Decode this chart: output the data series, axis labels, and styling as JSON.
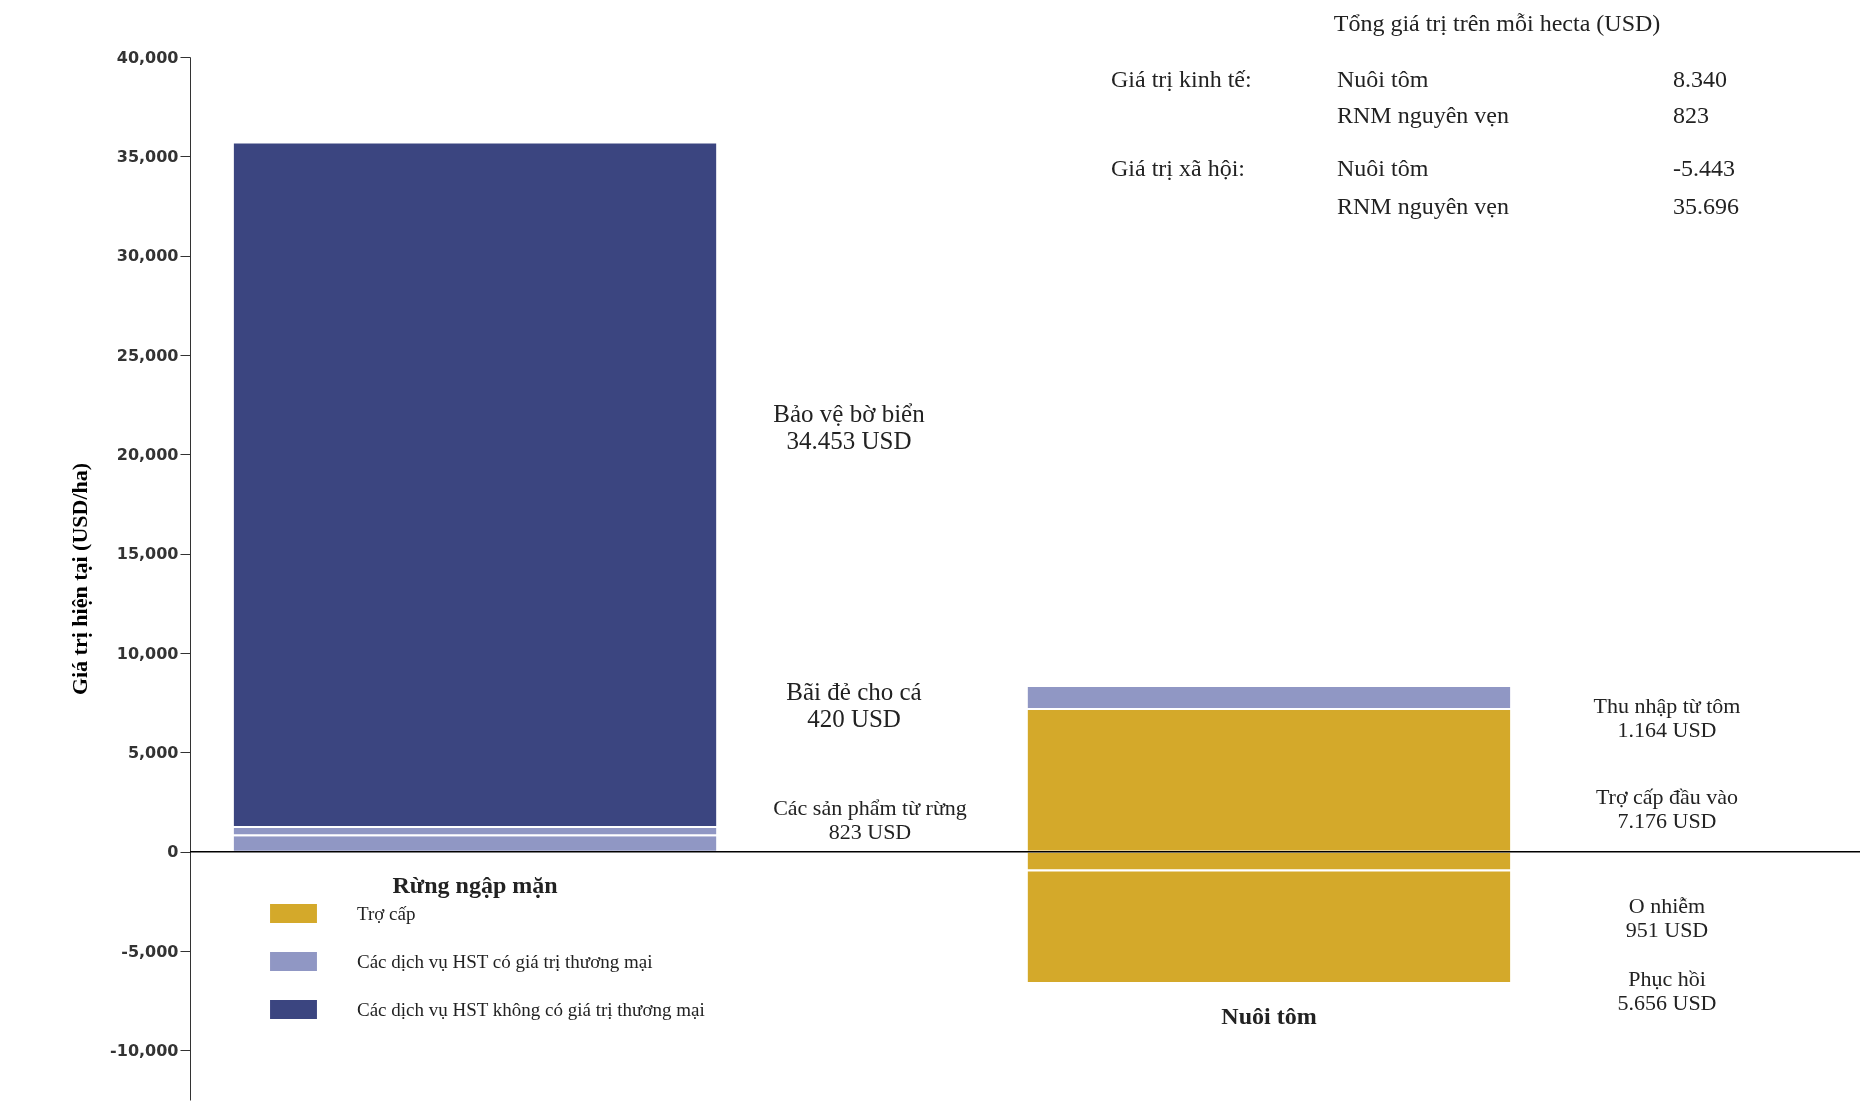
{
  "chart_data": {
    "type": "bar",
    "stacked": true,
    "categories": [
      "Rừng ngập mặn",
      "Nuôi tôm"
    ],
    "series": [
      {
        "name": "Trợ cấp",
        "color": "#d4a92a",
        "values": [
          null,
          7176
        ]
      },
      {
        "name": "Các dịch vụ HST có giá trị thương mại",
        "color": "#9097c4",
        "values": [
          823,
          1164
        ]
      },
      {
        "color": "#9097c4",
        "values": [
          420,
          null
        ]
      },
      {
        "name": "Các dịch vụ HST không có giá trị thương mại",
        "color": "#3b4580",
        "values": [
          34453,
          null
        ]
      },
      {
        "color": "#d4a92a",
        "values": [
          null,
          -951
        ]
      },
      {
        "color": "#d4a92a",
        "values": [
          null,
          -5656
        ]
      }
    ],
    "ylim": [
      -12500,
      40000
    ],
    "yticks": [
      {
        "value": -10000,
        "label": "-10,000"
      },
      {
        "value": -5000,
        "label": "-5,000"
      },
      0,
      {
        "value": 5000,
        "label": "5,000"
      },
      {
        "value": 10000,
        "label": "10,000"
      },
      {
        "value": 15000,
        "label": "15,000"
      },
      {
        "value": 20000,
        "label": "20,000"
      },
      {
        "value": 25000,
        "label": "25,000"
      },
      {
        "value": 30000,
        "label": "30,000"
      },
      {
        "value": 35000,
        "label": "35,000"
      },
      {
        "value": 40000,
        "label": "40,000"
      }
    ],
    "ylabel": "Giá trị hiện tại (USD/ha)",
    "ref_lines": [
      {
        "axis": "y",
        "value": 0,
        "color": "#000000"
      }
    ],
    "grid": false,
    "legend": "bottom left",
    "annotations": [
      "Tổng giá trị trên mỗi hecta (USD)",
      "Giá trị kinh tế:",
      "Nuôi tôm",
      "8.340",
      "RNM nguyên vẹn",
      "823",
      "Giá trị xã hội:",
      "Nuôi tôm",
      "-5.443",
      "RNM nguyên vẹn",
      "35.696",
      "Bảo vệ bờ biển\n34.453 USD",
      "Bãi đẻ cho cá\n420 USD",
      "Các sản phẩm từ rừng\n823 USD",
      "Thu nhập từ tôm\n1.164 USD",
      "Trợ cấp đầu vào\n7.176 USD",
      "O nhiễm\n951 USD",
      "Phục hồi\n5.656 USD"
    ]
  }
}
